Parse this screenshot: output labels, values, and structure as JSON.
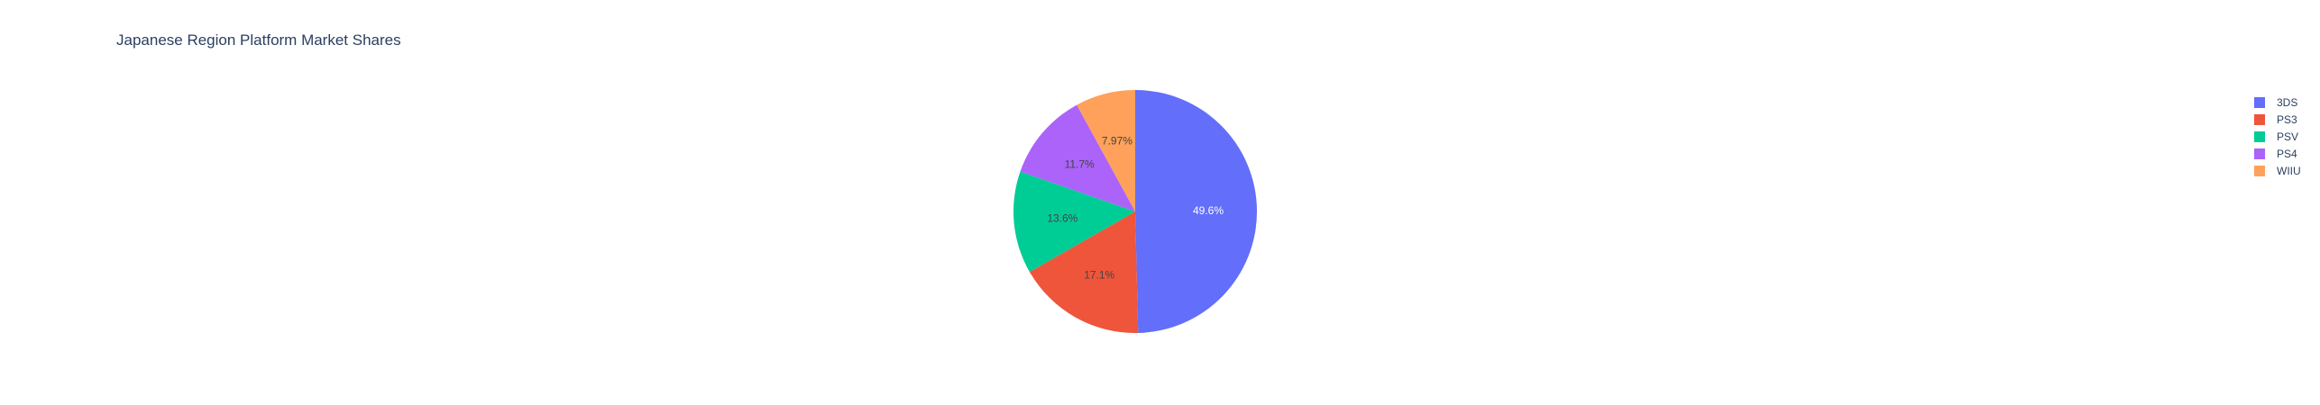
{
  "chart_data": {
    "type": "pie",
    "title": "Japanese Region Platform Market Shares",
    "categories": [
      "3DS",
      "PS3",
      "PSV",
      "PS4",
      "WIIU"
    ],
    "values": [
      49.6,
      17.1,
      13.6,
      11.7,
      7.97
    ],
    "labels": [
      "49.6%",
      "17.1%",
      "13.6%",
      "11.7%",
      "7.97%"
    ],
    "colors": [
      "#636efa",
      "#ef553b",
      "#00cc96",
      "#ab63fa",
      "#ffa15a"
    ],
    "label_colors": [
      "#ffffff",
      "#444444",
      "#444444",
      "#444444",
      "#444444"
    ],
    "direction": "clockwise",
    "start_angle": "top",
    "legend_placement": "top-right"
  }
}
